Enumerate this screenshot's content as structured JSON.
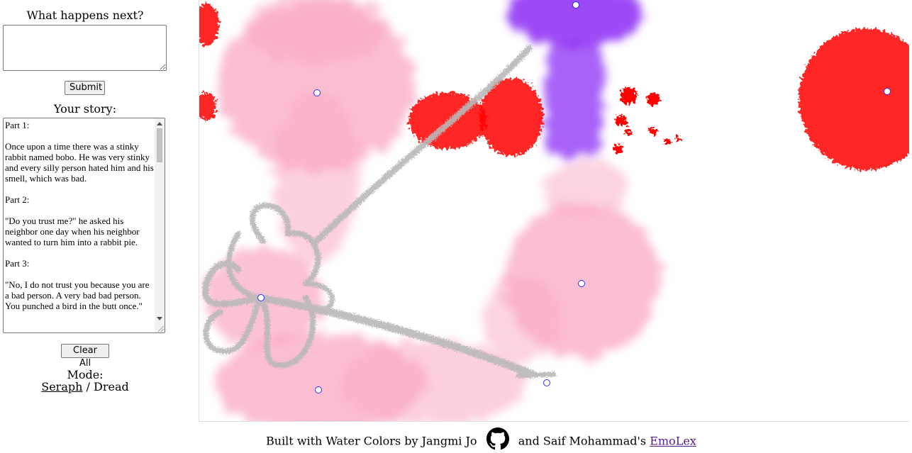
{
  "sidebar": {
    "prompt_label": "What happens next?",
    "prompt_value": "",
    "submit_label": "Submit",
    "story_label": "Your story:",
    "story_text": "Part 1:\n\nOnce upon a time there was a stinky rabbit named bobo. He was very stinky and every silly person hated him and his smell, which was bad.\n\nPart 2:\n\n\"Do you trust me?\" he asked his neighbor one day when his neighbor wanted to turn him into a rabbit pie.\n\nPart 3:\n\n\"No, I do not trust you because you are a bad person. A very bad bad person. You punched a bird in the butt once.\"",
    "clear_label": "Clear All",
    "mode_label": "Mode:",
    "mode_seraph": "Seraph",
    "mode_separator": "/",
    "mode_dread": "Dread"
  },
  "canvas": {
    "colors": {
      "pink": "#f9a8c2",
      "red": "#ff0000",
      "purple": "#8b2cf5",
      "gray": "#b8b8b8",
      "marker_fill": "#ffffff",
      "marker_stroke": "#2d2df0"
    },
    "icons": [
      "watercolor-splotch",
      "control-point-marker"
    ]
  },
  "footer": {
    "text_before": "Built with Water Colors by Jangmi Jo",
    "github_icon": "github-icon",
    "text_middle": "and Saif Mohammad's",
    "link_label": "EmoLex"
  }
}
